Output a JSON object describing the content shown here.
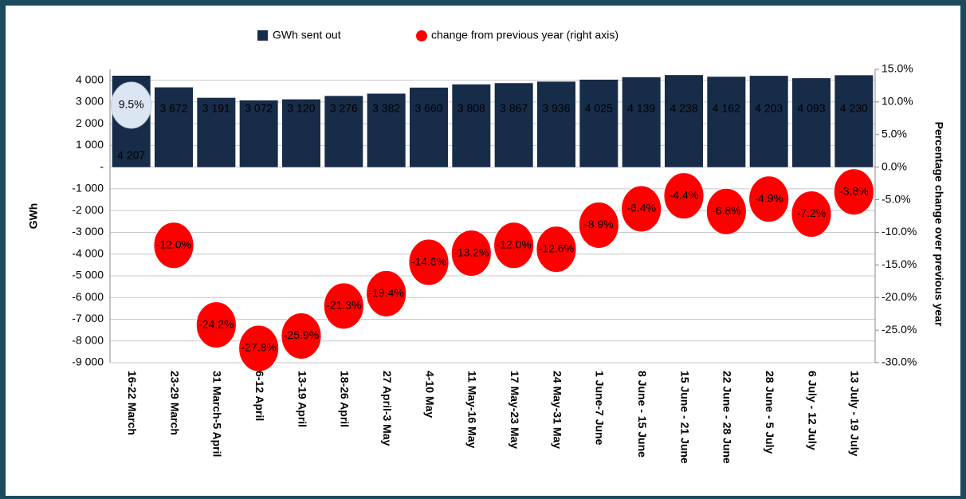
{
  "chart_data": {
    "type": "bar_scatter",
    "categories": [
      "16-22 March",
      "23-29 March",
      "31 March-5 April",
      "6-12 April",
      "13-19 April",
      "18-26 April",
      "27 April-3 May",
      "4-10 May",
      "11 May-16 May",
      "17 May-23 May",
      "24 May-31 May",
      "1 June-7 June",
      "8 June - 15 June",
      "15 June - 21 June",
      "22 June - 28 June",
      "28 June - 5 July",
      "6 July - 12 July",
      "13 July - 19 July"
    ],
    "series": [
      {
        "name": "GWh sent out",
        "type": "bar",
        "color": "#172c48",
        "values": [
          4207,
          3672,
          3191,
          3072,
          3120,
          3276,
          3382,
          3660,
          3808,
          3867,
          3936,
          4025,
          4139,
          4238,
          4162,
          4203,
          4093,
          4230
        ],
        "value_labels": [
          "4 207",
          "3 672",
          "3 191",
          "3 072",
          "3 120",
          "3 276",
          "3 382",
          "3 660",
          "3 808",
          "3 867",
          "3 936",
          "4 025",
          "4 139",
          "4 238",
          "4 162",
          "4 203",
          "4 093",
          "4 230"
        ]
      },
      {
        "name": "change from previous year (right axis)",
        "type": "scatter",
        "axis": "y2",
        "color": "#ff0000",
        "point_colors": [
          "#dce6f2",
          "#ff0000",
          "#ff0000",
          "#ff0000",
          "#ff0000",
          "#ff0000",
          "#ff0000",
          "#ff0000",
          "#ff0000",
          "#ff0000",
          "#ff0000",
          "#ff0000",
          "#ff0000",
          "#ff0000",
          "#ff0000",
          "#ff0000",
          "#ff0000",
          "#ff0000"
        ],
        "values": [
          9.5,
          -12.0,
          -24.2,
          -27.8,
          -25.9,
          -21.3,
          -19.4,
          -14.6,
          -13.2,
          -12.0,
          -12.6,
          -8.9,
          -6.4,
          -4.4,
          -6.8,
          -4.9,
          -7.2,
          -3.8
        ],
        "value_labels": [
          "9.5%",
          "-12.0%",
          "-24.2%",
          "-27.8%",
          "-25.9%",
          "-21.3%",
          "-19.4%",
          "-14.6%",
          "-13.2%",
          "-12.0%",
          "-12.6%",
          "-8.9%",
          "-6.4%",
          "-4.4%",
          "-6.8%",
          "-4.9%",
          "-7.2%",
          "-3.8%"
        ]
      }
    ],
    "y_label": "GWh",
    "y2_label": "Percentage change over previous year",
    "ylim": [
      -9000,
      4500
    ],
    "yticks": [
      {
        "value": 4000,
        "label": "4 000"
      },
      {
        "value": 3000,
        "label": "3 000"
      },
      {
        "value": 2000,
        "label": "2 000"
      },
      {
        "value": 1000,
        "label": "1 000"
      },
      {
        "value": 0,
        "label": "-"
      },
      {
        "value": -1000,
        "label": "-1 000"
      },
      {
        "value": -2000,
        "label": "-2 000"
      },
      {
        "value": -3000,
        "label": "-3 000"
      },
      {
        "value": -4000,
        "label": "-4 000"
      },
      {
        "value": -5000,
        "label": "-5 000"
      },
      {
        "value": -6000,
        "label": "-6 000"
      },
      {
        "value": -7000,
        "label": "-7 000"
      },
      {
        "value": -8000,
        "label": "-8 000"
      },
      {
        "value": -9000,
        "label": "-9 000"
      }
    ],
    "y2lim": [
      -30,
      15
    ],
    "y2ticks": [
      {
        "value": 15,
        "label": "15.0%"
      },
      {
        "value": 10,
        "label": "10.0%"
      },
      {
        "value": 5,
        "label": "5.0%"
      },
      {
        "value": 0,
        "label": "0.0%"
      },
      {
        "value": -5,
        "label": "-5.0%"
      },
      {
        "value": -10,
        "label": "-10.0%"
      },
      {
        "value": -15,
        "label": "-15.0%"
      },
      {
        "value": -20,
        "label": "-20.0%"
      },
      {
        "value": -25,
        "label": "-25.0%"
      },
      {
        "value": -30,
        "label": "-30.0%"
      }
    ],
    "grid": true,
    "legend": "top"
  }
}
